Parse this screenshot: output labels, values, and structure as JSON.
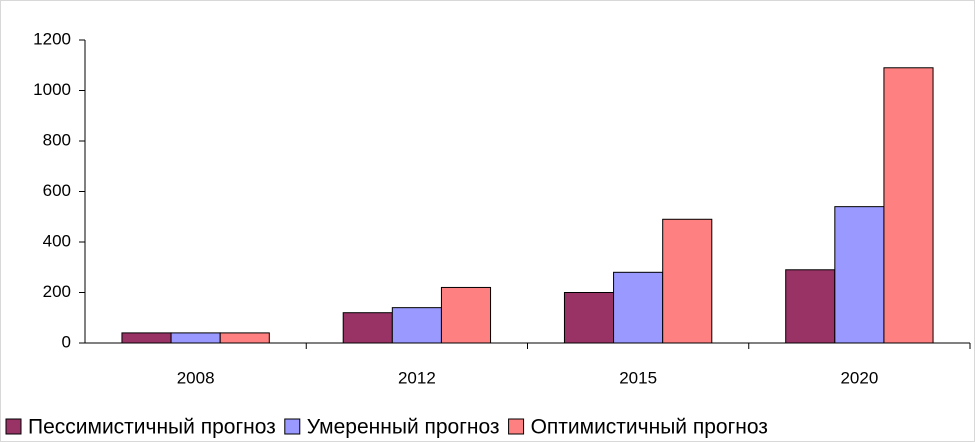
{
  "chart_data": {
    "type": "bar",
    "categories": [
      "2008",
      "2012",
      "2015",
      "2020"
    ],
    "series": [
      {
        "name": "Пессимистичный прогноз",
        "color": "#993366",
        "values": [
          40,
          120,
          200,
          290
        ]
      },
      {
        "name": "Умеренный прогноз",
        "color": "#9999ff",
        "values": [
          40,
          140,
          280,
          540
        ]
      },
      {
        "name": "Оптимистичный прогноз",
        "color": "#ff8080",
        "values": [
          40,
          220,
          490,
          1090
        ]
      }
    ],
    "ylim": [
      0,
      1200
    ],
    "yticks": [
      0,
      200,
      400,
      600,
      800,
      1000,
      1200
    ],
    "grid": false,
    "legend": "bottom"
  }
}
